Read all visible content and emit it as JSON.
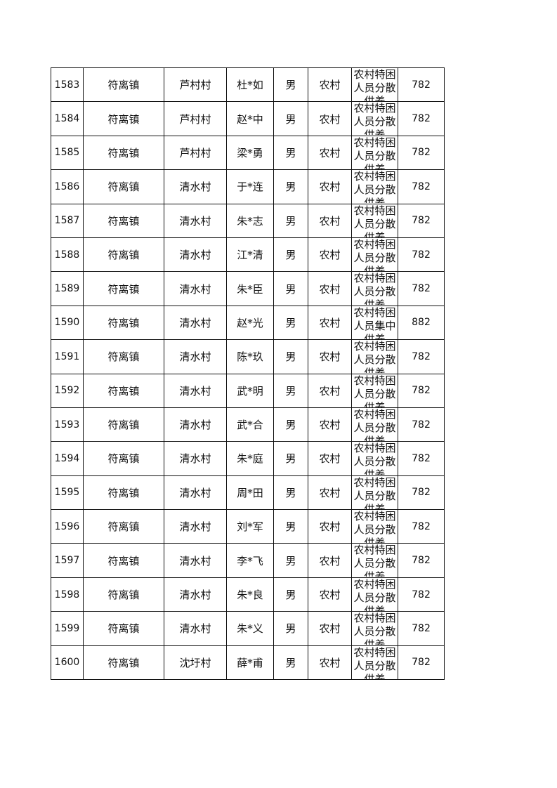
{
  "rows": [
    {
      "id": "1583",
      "town": "符离镇",
      "village": "芦村村",
      "name": "杜*如",
      "gender": "男",
      "area": "农村",
      "type": "农村特困人员分散供养",
      "amount": "782"
    },
    {
      "id": "1584",
      "town": "符离镇",
      "village": "芦村村",
      "name": "赵*中",
      "gender": "男",
      "area": "农村",
      "type": "农村特困人员分散供养",
      "amount": "782"
    },
    {
      "id": "1585",
      "town": "符离镇",
      "village": "芦村村",
      "name": "梁*勇",
      "gender": "男",
      "area": "农村",
      "type": "农村特困人员分散供养",
      "amount": "782"
    },
    {
      "id": "1586",
      "town": "符离镇",
      "village": "清水村",
      "name": "于*连",
      "gender": "男",
      "area": "农村",
      "type": "农村特困人员分散供养",
      "amount": "782"
    },
    {
      "id": "1587",
      "town": "符离镇",
      "village": "清水村",
      "name": "朱*志",
      "gender": "男",
      "area": "农村",
      "type": "农村特困人员分散供养",
      "amount": "782"
    },
    {
      "id": "1588",
      "town": "符离镇",
      "village": "清水村",
      "name": "江*清",
      "gender": "男",
      "area": "农村",
      "type": "农村特困人员分散供养",
      "amount": "782"
    },
    {
      "id": "1589",
      "town": "符离镇",
      "village": "清水村",
      "name": "朱*臣",
      "gender": "男",
      "area": "农村",
      "type": "农村特困人员分散供养",
      "amount": "782"
    },
    {
      "id": "1590",
      "town": "符离镇",
      "village": "清水村",
      "name": "赵*光",
      "gender": "男",
      "area": "农村",
      "type": "农村特困人员集中供养",
      "amount": "882"
    },
    {
      "id": "1591",
      "town": "符离镇",
      "village": "清水村",
      "name": "陈*玖",
      "gender": "男",
      "area": "农村",
      "type": "农村特困人员分散供养",
      "amount": "782"
    },
    {
      "id": "1592",
      "town": "符离镇",
      "village": "清水村",
      "name": "武*明",
      "gender": "男",
      "area": "农村",
      "type": "农村特困人员分散供养",
      "amount": "782"
    },
    {
      "id": "1593",
      "town": "符离镇",
      "village": "清水村",
      "name": "武*合",
      "gender": "男",
      "area": "农村",
      "type": "农村特困人员分散供养",
      "amount": "782"
    },
    {
      "id": "1594",
      "town": "符离镇",
      "village": "清水村",
      "name": "朱*庭",
      "gender": "男",
      "area": "农村",
      "type": "农村特困人员分散供养",
      "amount": "782"
    },
    {
      "id": "1595",
      "town": "符离镇",
      "village": "清水村",
      "name": "周*田",
      "gender": "男",
      "area": "农村",
      "type": "农村特困人员分散供养",
      "amount": "782"
    },
    {
      "id": "1596",
      "town": "符离镇",
      "village": "清水村",
      "name": "刘*军",
      "gender": "男",
      "area": "农村",
      "type": "农村特困人员分散供养",
      "amount": "782"
    },
    {
      "id": "1597",
      "town": "符离镇",
      "village": "清水村",
      "name": "李*飞",
      "gender": "男",
      "area": "农村",
      "type": "农村特困人员分散供养",
      "amount": "782"
    },
    {
      "id": "1598",
      "town": "符离镇",
      "village": "清水村",
      "name": "朱*良",
      "gender": "男",
      "area": "农村",
      "type": "农村特困人员分散供养",
      "amount": "782"
    },
    {
      "id": "1599",
      "town": "符离镇",
      "village": "清水村",
      "name": "朱*义",
      "gender": "男",
      "area": "农村",
      "type": "农村特困人员分散供养",
      "amount": "782"
    },
    {
      "id": "1600",
      "town": "符离镇",
      "village": "沈圩村",
      "name": "薛*甫",
      "gender": "男",
      "area": "农村",
      "type": "农村特困人员分散供养",
      "amount": "782"
    }
  ]
}
